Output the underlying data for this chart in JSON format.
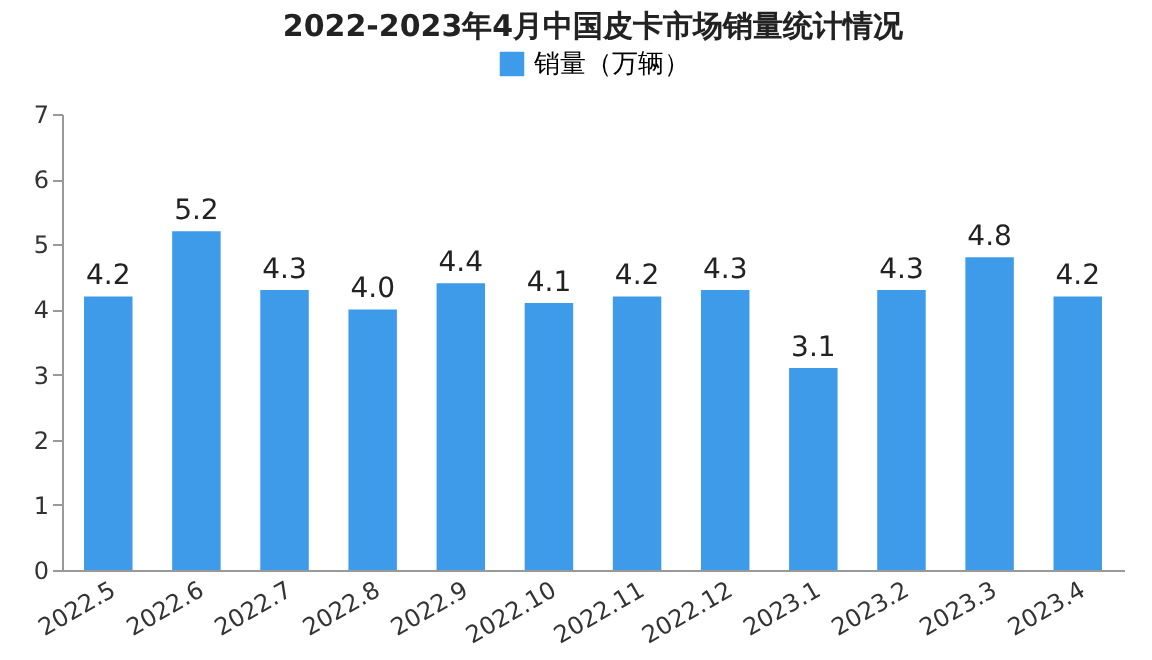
{
  "chart_data": {
    "type": "bar",
    "title": "2022-2023年4月中国皮卡市场销量统计情况",
    "categories": [
      "2022.5",
      "2022.6",
      "2022.7",
      "2022.8",
      "2022.9",
      "2022.10",
      "2022.11",
      "2022.12",
      "2023.1",
      "2023.2",
      "2023.3",
      "2023.4"
    ],
    "series": [
      {
        "name": "销量（万辆）",
        "color": "#3d9be9",
        "values": [
          4.2,
          5.2,
          4.3,
          4.0,
          4.4,
          4.1,
          4.2,
          4.3,
          3.1,
          4.3,
          4.8,
          4.2
        ]
      }
    ],
    "value_labels": [
      "4.2",
      "5.2",
      "4.3",
      "4.0",
      "4.4",
      "4.1",
      "4.2",
      "4.3",
      "3.1",
      "4.3",
      "4.8",
      "4.2"
    ],
    "ylim": [
      0,
      7
    ],
    "yticks": [
      0,
      1,
      2,
      3,
      4,
      5,
      6,
      7
    ],
    "grid": false,
    "legend": "top"
  }
}
